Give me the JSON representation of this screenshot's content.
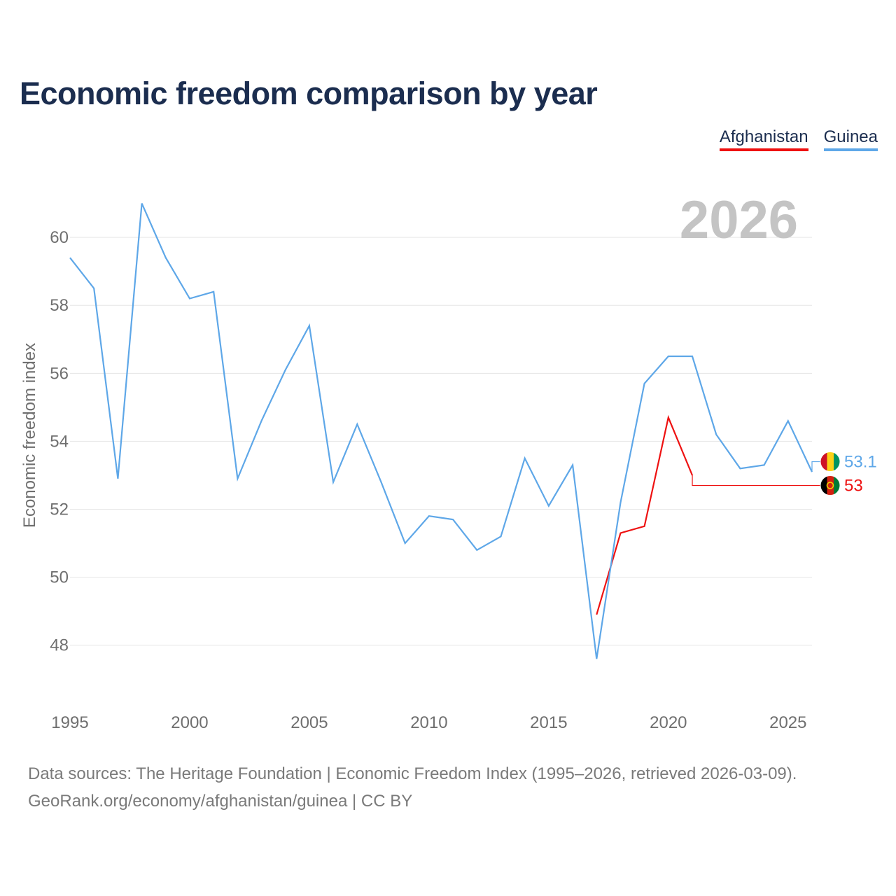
{
  "title": "Economic freedom comparison by year",
  "legend": {
    "afghanistan": "Afghanistan",
    "guinea": "Guinea"
  },
  "footer": {
    "line1": "Data sources: The Heritage Foundation | Economic Freedom Index (1995–2026, retrieved 2026-03-09).",
    "line2": "GeoRank.org/economy/afghanistan/guinea | CC BY"
  },
  "colors": {
    "afghanistan": "#ee1111",
    "guinea": "#5ea7e8",
    "title": "#1b2d4f"
  },
  "chart_data": {
    "type": "line",
    "title": "Economic freedom comparison by year",
    "watermark_year": "2026",
    "ylabel": "Economic freedom index",
    "xlabel": "",
    "xlim": [
      1995,
      2026
    ],
    "ylim": [
      46.8,
      62
    ],
    "x_ticks": [
      1995,
      2000,
      2005,
      2010,
      2015,
      2020,
      2025
    ],
    "y_ticks": [
      48,
      50,
      52,
      54,
      56,
      58,
      60
    ],
    "grid": true,
    "legend_position": "top-right",
    "series": [
      {
        "name": "Afghanistan",
        "key": "afghanistan",
        "color": "#ee1111",
        "end_label": "53",
        "end_value": 53.0,
        "flag": "afghanistan-flag-icon",
        "points": [
          [
            2017,
            48.9
          ],
          [
            2018,
            51.3
          ],
          [
            2019,
            51.5
          ],
          [
            2020,
            54.7
          ],
          [
            2021,
            53.0
          ]
        ]
      },
      {
        "name": "Guinea",
        "key": "guinea",
        "color": "#5ea7e8",
        "end_label": "53.1",
        "end_value": 53.1,
        "flag": "guinea-flag-icon",
        "points": [
          [
            1995,
            59.4
          ],
          [
            1996,
            58.5
          ],
          [
            1997,
            52.9
          ],
          [
            1998,
            61.0
          ],
          [
            1999,
            59.4
          ],
          [
            2000,
            58.2
          ],
          [
            2001,
            58.4
          ],
          [
            2002,
            52.9
          ],
          [
            2003,
            54.6
          ],
          [
            2004,
            56.1
          ],
          [
            2005,
            57.4
          ],
          [
            2006,
            52.8
          ],
          [
            2007,
            54.5
          ],
          [
            2008,
            52.8
          ],
          [
            2009,
            51.0
          ],
          [
            2010,
            51.8
          ],
          [
            2011,
            51.7
          ],
          [
            2012,
            50.8
          ],
          [
            2013,
            51.2
          ],
          [
            2014,
            53.5
          ],
          [
            2015,
            52.1
          ],
          [
            2016,
            53.3
          ],
          [
            2017,
            47.6
          ],
          [
            2018,
            52.2
          ],
          [
            2019,
            55.7
          ],
          [
            2020,
            56.5
          ],
          [
            2021,
            56.5
          ],
          [
            2022,
            54.2
          ],
          [
            2023,
            53.2
          ],
          [
            2024,
            53.3
          ],
          [
            2025,
            54.6
          ],
          [
            2026,
            53.1
          ]
        ]
      }
    ]
  }
}
